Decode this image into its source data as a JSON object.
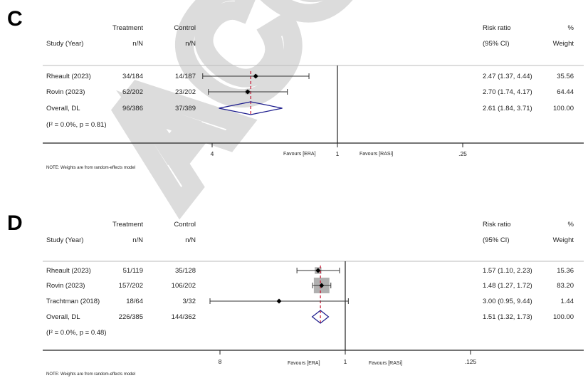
{
  "watermark": "ACCEPTED",
  "colors": {
    "diamond": "#1a1a8c",
    "pooled_line": "#c8102e",
    "box": "#b0b0b0",
    "axis": "#222222"
  },
  "chart_data": [
    {
      "type": "forest",
      "panel_label": "C",
      "scale": "log, reversed",
      "headers": {
        "treatment": "Treatment",
        "control": "Control",
        "study": "Study (Year)",
        "treatment_sub": "n/N",
        "control_sub": "n/N",
        "rr": "Risk ratio",
        "rr_sub": "(95% CI)",
        "pct": "%",
        "weight": "Weight"
      },
      "studies": [
        {
          "name": "Rheault (2023)",
          "treatment": "34/184",
          "control": "14/187",
          "rr": 2.47,
          "lo": 1.37,
          "hi": 4.44,
          "ci_text": "2.47 (1.37, 4.44)",
          "weight": "35.56"
        },
        {
          "name": "Rovin (2023)",
          "treatment": "62/202",
          "control": "23/202",
          "rr": 2.7,
          "lo": 1.74,
          "hi": 4.17,
          "ci_text": "2.70 (1.74, 4.17)",
          "weight": "64.44"
        }
      ],
      "overall": {
        "name": "Overall, DL",
        "treatment": "96/386",
        "control": "37/389",
        "rr": 2.61,
        "lo": 1.84,
        "hi": 3.71,
        "ci_text": "2.61 (1.84, 3.71)",
        "weight": "100.00"
      },
      "heterogeneity": "(I² = 0.0%, p = 0.81)",
      "ticks": [
        {
          "value": 4,
          "label": "4"
        },
        {
          "value": 1,
          "label": "1"
        },
        {
          "value": 0.25,
          "label": ".25"
        }
      ],
      "favours_left": "Favours [ERA]",
      "favours_right": "Favours [RASi]",
      "note": "NOTE: Weights are from random-effects model"
    },
    {
      "type": "forest",
      "panel_label": "D",
      "scale": "log, reversed",
      "headers": {
        "treatment": "Treatment",
        "control": "Control",
        "study": "Study (Year)",
        "treatment_sub": "n/N",
        "control_sub": "n/N",
        "rr": "Risk ratio",
        "rr_sub": "(95% CI)",
        "pct": "%",
        "weight": "Weight"
      },
      "studies": [
        {
          "name": "Rheault (2023)",
          "treatment": "51/119",
          "control": "35/128",
          "rr": 1.57,
          "lo": 1.1,
          "hi": 2.23,
          "ci_text": "1.57 (1.10, 2.23)",
          "weight": "15.36"
        },
        {
          "name": "Rovin (2023)",
          "treatment": "157/202",
          "control": "106/202",
          "rr": 1.48,
          "lo": 1.27,
          "hi": 1.72,
          "ci_text": "1.48 (1.27, 1.72)",
          "weight": "83.20"
        },
        {
          "name": "Trachtman  (2018)",
          "treatment": "18/64",
          "control": "3/32",
          "rr": 3.0,
          "lo": 0.95,
          "hi": 9.44,
          "ci_text": "3.00 (0.95, 9.44)",
          "weight": "1.44"
        }
      ],
      "overall": {
        "name": "Overall, DL",
        "treatment": "226/385",
        "control": "144/362",
        "rr": 1.51,
        "lo": 1.32,
        "hi": 1.73,
        "ci_text": "1.51 (1.32, 1.73)",
        "weight": "100.00"
      },
      "heterogeneity": "(I² = 0.0%, p = 0.48)",
      "ticks": [
        {
          "value": 8,
          "label": "8"
        },
        {
          "value": 1,
          "label": "1"
        },
        {
          "value": 0.125,
          "label": ".125"
        }
      ],
      "favours_left": "Favours [ERA]",
      "favours_right": "Favours [RASi]",
      "note": "NOTE: Weights are from random-effects model"
    }
  ]
}
